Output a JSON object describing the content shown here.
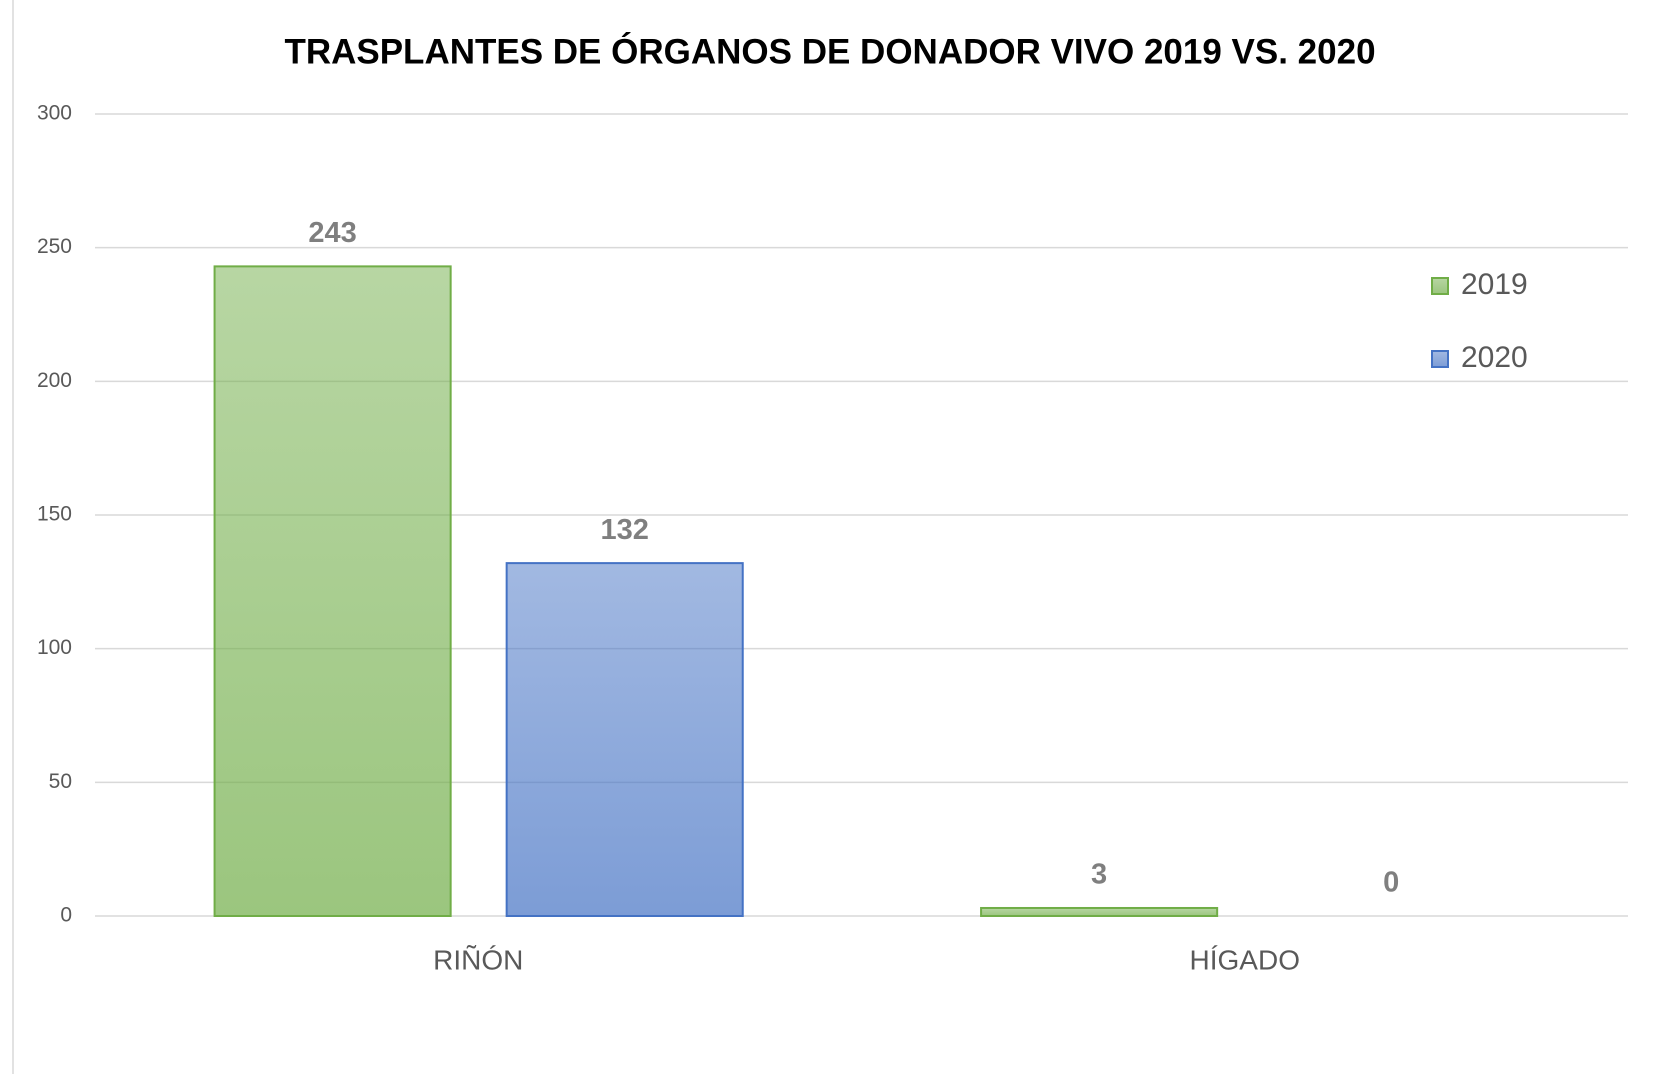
{
  "chart_data": {
    "type": "bar",
    "title": "TRASPLANTES DE ÓRGANOS DE DONADOR VIVO 2019 VS. 2020",
    "categories": [
      "RIÑÓN",
      "HÍGADO"
    ],
    "series": [
      {
        "name": "2019",
        "color": "#70ad47",
        "values": [
          243,
          3
        ]
      },
      {
        "name": "2020",
        "color": "#4472c4",
        "values": [
          132,
          0
        ]
      }
    ],
    "ylim": [
      0,
      300
    ],
    "yticks": [
      0,
      50,
      100,
      150,
      200,
      250,
      300
    ],
    "grid": true,
    "legend": "right"
  }
}
